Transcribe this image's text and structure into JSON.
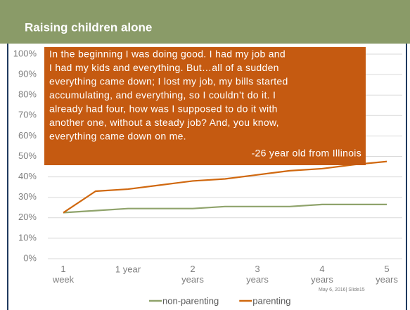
{
  "chart_data": {
    "type": "line",
    "title": "Raising children alone",
    "categories": [
      "1\nweek",
      null,
      "1 year",
      null,
      "2\nyears",
      null,
      "3\nyears",
      null,
      "4\nyears",
      null,
      "5\nyears"
    ],
    "series": [
      {
        "name": "non-parenting",
        "color": "#8fa36b",
        "values": [
          22.5,
          23.5,
          24.5,
          24.5,
          24.5,
          25.5,
          25.5,
          25.5,
          26.5,
          26.5,
          26.5
        ]
      },
      {
        "name": "parenting",
        "color": "#d0680f",
        "values": [
          22.5,
          33,
          34,
          36,
          38,
          39,
          41,
          43,
          44,
          46,
          47.5
        ]
      }
    ],
    "ylim": [
      0,
      100
    ],
    "yticks": [
      {
        "value": 0,
        "label": "0%"
      },
      {
        "value": 10,
        "label": "10%"
      },
      {
        "value": 20,
        "label": "20%"
      },
      {
        "value": 30,
        "label": "30%"
      },
      {
        "value": 40,
        "label": "40%"
      },
      {
        "value": 50,
        "label": "50%"
      },
      {
        "value": 60,
        "label": "60%"
      },
      {
        "value": 70,
        "label": "70%"
      },
      {
        "value": 80,
        "label": "80%"
      },
      {
        "value": 90,
        "label": "90%"
      },
      {
        "value": 100,
        "label": "100%"
      }
    ],
    "grid": true,
    "legend": "bottom",
    "annotation": {
      "lines": [
        "In the beginning I was doing good. I had my job and",
        "I had my kids and everything. But…all of a sudden",
        "everything came down; I lost my job, my bills started",
        "accumulating, and everything, so I couldn’t do it. I",
        "already had four, how was I supposed to do it with",
        "another one, without a steady job? And, you know,",
        "everything came down on me."
      ],
      "attribution": "-26 year old from Illinois"
    },
    "footer": "May 6, 2016| Slide15"
  }
}
